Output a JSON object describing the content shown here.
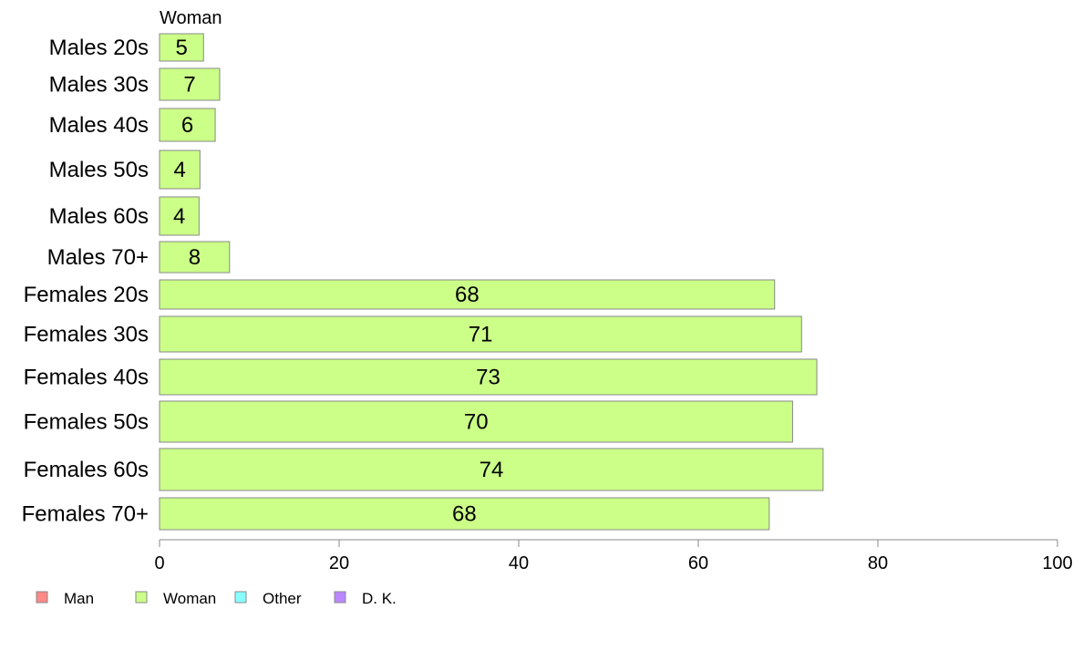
{
  "chart_data": {
    "type": "bar",
    "orientation": "horizontal",
    "categories": [
      "Males 20s",
      "Males 30s",
      "Males 40s",
      "Males 50s",
      "Males 60s",
      "Males 70+",
      "Females 20s",
      "Females 30s",
      "Females 40s",
      "Females 50s",
      "Females 60s",
      "Females 70+"
    ],
    "series": [
      {
        "name": "Woman",
        "color": "#ccff88",
        "values": [
          4.9,
          6.7,
          6.2,
          4.5,
          4.4,
          7.8,
          68.5,
          71.5,
          73.2,
          70.5,
          73.9,
          67.9
        ]
      }
    ],
    "data_labels": [
      "5",
      "7",
      "6",
      "4",
      "4",
      "8",
      "68",
      "71",
      "73",
      "70",
      "74",
      "68"
    ],
    "series_title": "Woman",
    "xlim": [
      0,
      100
    ],
    "xticks": [
      "0",
      "20",
      "40",
      "60",
      "80",
      "100"
    ],
    "legend": {
      "placement": "bottom-left",
      "entries": [
        {
          "label": "Man",
          "color": "#ff8888"
        },
        {
          "label": "Woman",
          "color": "#ccff88"
        },
        {
          "label": "Other",
          "color": "#88ffff"
        },
        {
          "label": "D. K.",
          "color": "#bb88ff"
        }
      ]
    },
    "title": "",
    "xlabel": "",
    "ylabel": "",
    "grid": false
  }
}
